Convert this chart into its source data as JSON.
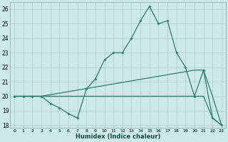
{
  "xlabel": "Humidex (Indice chaleur)",
  "background_color": "#cce8e8",
  "grid_color": "#aacccc",
  "line_color": "#2e7d6e",
  "xlim": [
    -0.5,
    23.5
  ],
  "ylim": [
    17.8,
    26.5
  ],
  "yticks": [
    18,
    19,
    20,
    21,
    22,
    23,
    24,
    25,
    26
  ],
  "xticks": [
    0,
    1,
    2,
    3,
    4,
    5,
    6,
    7,
    8,
    9,
    10,
    11,
    12,
    13,
    14,
    15,
    16,
    17,
    18,
    19,
    20,
    21,
    22,
    23
  ],
  "line_main_x": [
    0,
    1,
    2,
    3,
    4,
    5,
    6,
    7,
    8,
    9,
    10,
    11,
    12,
    13,
    14,
    15,
    16,
    17,
    18,
    19,
    20,
    21,
    22,
    23
  ],
  "line_main_y": [
    20,
    20,
    20,
    20,
    19.5,
    19.2,
    18.8,
    18.5,
    20.5,
    21.2,
    22.5,
    23,
    23,
    24,
    25.2,
    26.2,
    25,
    25.2,
    23,
    22,
    20,
    21.8,
    18.5,
    18
  ],
  "line_upper_x": [
    0,
    3,
    20,
    21,
    22,
    23
  ],
  "line_upper_y": [
    20,
    20,
    21.8,
    21.8,
    20,
    18
  ],
  "line_lower_x": [
    0,
    3,
    20,
    21,
    22,
    23
  ],
  "line_lower_y": [
    20,
    20,
    20,
    20,
    18.5,
    18
  ],
  "figsize": [
    3.2,
    2.0
  ],
  "dpi": 100
}
